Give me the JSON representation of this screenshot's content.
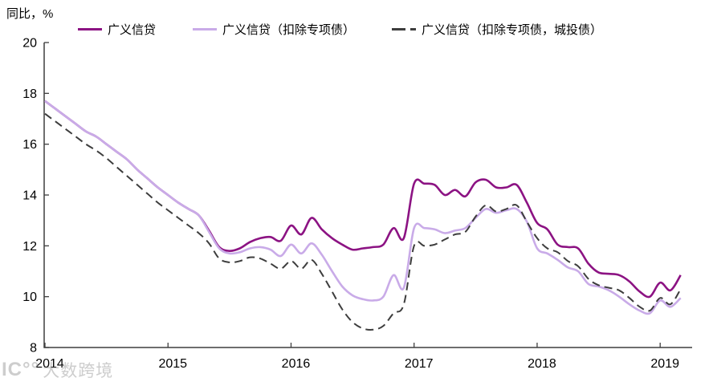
{
  "watermark": {
    "logo": "IC°°",
    "text": "大数跨境"
  },
  "chart_data": {
    "type": "line",
    "title": "",
    "unit_label": "同比，%",
    "xlabel": "",
    "ylabel": "同比，%",
    "ylim": [
      8,
      20
    ],
    "y_ticks": [
      8,
      10,
      12,
      14,
      16,
      18,
      20
    ],
    "x_tick_labels": [
      "2014",
      "2015",
      "2016",
      "2017",
      "2018",
      "2019"
    ],
    "x_tick_month_index": [
      0,
      12,
      24,
      36,
      48,
      60
    ],
    "x_start": "2014-01",
    "x_end": "2019-03",
    "grid": false,
    "legend_position": "top",
    "axis_color": "#3f3f3f",
    "series": [
      {
        "name": "广义信贷",
        "color": "#8c1383",
        "style": "solid",
        "values": [
          17.7,
          17.4,
          17.1,
          16.8,
          16.5,
          16.3,
          16.0,
          15.7,
          15.4,
          15.0,
          14.65,
          14.3,
          14.0,
          13.7,
          13.45,
          13.2,
          12.6,
          11.95,
          11.8,
          11.9,
          12.15,
          12.3,
          12.35,
          12.2,
          12.8,
          12.45,
          13.1,
          12.65,
          12.3,
          12.05,
          11.85,
          11.9,
          11.95,
          12.05,
          12.7,
          12.3,
          14.45,
          14.45,
          14.4,
          14.0,
          14.2,
          13.95,
          14.5,
          14.6,
          14.3,
          14.3,
          14.4,
          13.7,
          12.9,
          12.65,
          12.05,
          11.95,
          11.9,
          11.3,
          10.95,
          10.9,
          10.85,
          10.6,
          10.2,
          10.0,
          10.55,
          10.25,
          10.85
        ]
      },
      {
        "name": "广义信贷（扣除专项债）",
        "color": "#c9abe8",
        "style": "solid",
        "values": [
          17.7,
          17.4,
          17.1,
          16.8,
          16.5,
          16.3,
          16.0,
          15.7,
          15.4,
          15.0,
          14.65,
          14.3,
          14.0,
          13.7,
          13.45,
          13.2,
          12.55,
          11.9,
          11.7,
          11.75,
          11.9,
          11.95,
          11.85,
          11.6,
          12.05,
          11.7,
          12.1,
          11.65,
          11.0,
          10.4,
          10.05,
          9.9,
          9.85,
          10.0,
          10.85,
          10.35,
          12.7,
          12.7,
          12.65,
          12.5,
          12.6,
          12.7,
          13.1,
          13.45,
          13.3,
          13.4,
          13.45,
          12.95,
          11.9,
          11.7,
          11.45,
          11.15,
          11.0,
          10.5,
          10.4,
          10.25,
          10.0,
          9.7,
          9.45,
          9.35,
          9.85,
          9.6,
          9.95
        ]
      },
      {
        "name": "广义信贷（扣除专项债，城投债）",
        "color": "#3d3d3d",
        "style": "dashed",
        "values": [
          17.2,
          16.9,
          16.6,
          16.3,
          16.0,
          15.75,
          15.45,
          15.1,
          14.75,
          14.4,
          14.05,
          13.7,
          13.4,
          13.1,
          12.8,
          12.5,
          12.1,
          11.5,
          11.35,
          11.4,
          11.55,
          11.5,
          11.3,
          11.1,
          11.4,
          11.1,
          11.45,
          10.9,
          10.2,
          9.5,
          9.0,
          8.75,
          8.7,
          8.85,
          9.35,
          9.7,
          12.0,
          12.0,
          12.05,
          12.25,
          12.45,
          12.55,
          13.15,
          13.6,
          13.35,
          13.45,
          13.6,
          12.95,
          12.3,
          11.9,
          11.75,
          11.4,
          11.2,
          10.7,
          10.45,
          10.35,
          10.25,
          9.95,
          9.6,
          9.45,
          9.95,
          9.7,
          10.3
        ]
      }
    ]
  }
}
